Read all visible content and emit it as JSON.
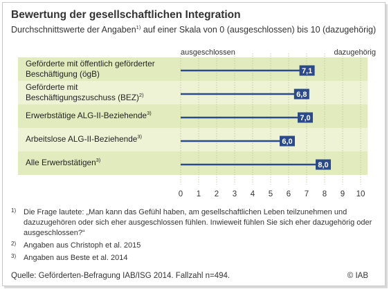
{
  "header": {
    "title": "Bewertung der gesellschaftlichen Integration",
    "subtitle_pre": "Durchschnittswerte der Angaben",
    "subtitle_sup": "1)",
    "subtitle_post": " auf einer Skala von 0 (ausgeschlossen) bis 10 (dazugehörig)"
  },
  "chart_data": {
    "type": "bar",
    "orientation": "horizontal",
    "categories": [
      {
        "text": "Geförderte mit öffentlich geförderter Beschäftigung (ögB)",
        "sup": ""
      },
      {
        "text": "Geförderte mit Beschäftigungszuschuss (BEZ)",
        "sup": "2)"
      },
      {
        "text": "Erwerbstätige ALG-II-Beziehende",
        "sup": "3)"
      },
      {
        "text": "Arbeitslose ALG-II-Beziehende",
        "sup": "3)"
      },
      {
        "text": "Alle Erwerbstätigen",
        "sup": "3)"
      }
    ],
    "values": [
      7.1,
      6.8,
      7.0,
      6.0,
      8.0
    ],
    "value_labels": [
      "7,1",
      "6,8",
      "7,0",
      "6,0",
      "8,0"
    ],
    "xlim": [
      0,
      10
    ],
    "x_ticks": [
      0,
      1,
      2,
      3,
      4,
      5,
      6,
      7,
      8,
      9,
      10
    ],
    "x_tick_labels": [
      "0",
      "1",
      "2",
      "3",
      "4",
      "5",
      "6",
      "7",
      "8",
      "9",
      "10"
    ],
    "axis_left_label": "ausgeschlossen",
    "axis_right_label": "dazugehörig",
    "grid": true,
    "colors": {
      "bar": "#2a4a8b",
      "band_light": "#eef3d6",
      "band_dark": "#e2ebbd",
      "grid": "#c4cc9a",
      "label_bg": "#2a4a8b",
      "label_text": "#ffffff"
    }
  },
  "footnotes": [
    {
      "mark": "1)",
      "text": "Die Frage lautete: „Man kann das Gefühl haben, am gesellschaftlichen Leben teilzunehmen und dazuzugehören oder sich eher ausgeschlossen fühlen. Inwieweit fühlen Sie sich eher dazugehörig oder ausgeschlossen?“"
    },
    {
      "mark": "2)",
      "text": "Angaben aus Christoph et al. 2015"
    },
    {
      "mark": "3)",
      "text": "Angaben aus Beste et al. 2014"
    }
  ],
  "source": "Quelle: Geförderten-Befragung IAB/ISG 2014. Fallzahl n=494.",
  "copyright": "© IAB"
}
